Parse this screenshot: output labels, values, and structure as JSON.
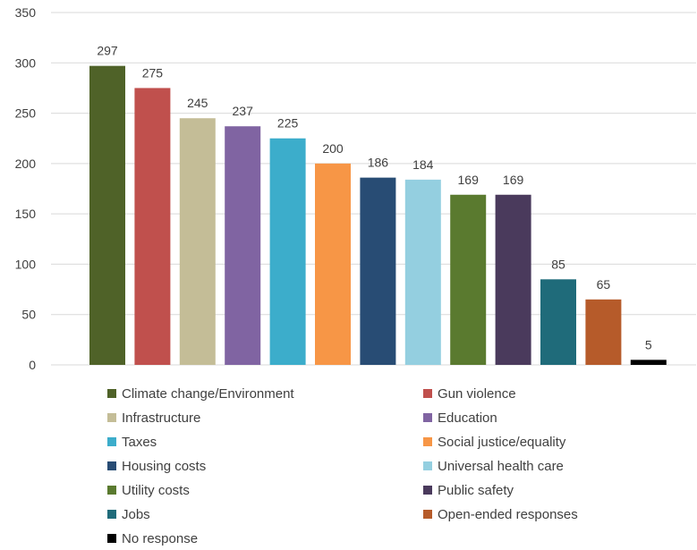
{
  "chart_data": {
    "type": "bar",
    "categories": [
      "Climate change/Environment",
      "Gun violence",
      "Infrastructure",
      "Education",
      "Taxes",
      "Social justice/equality",
      "Housing costs",
      "Universal health care",
      "Utility costs",
      "Public safety",
      "Jobs",
      "Open-ended responses",
      "No response"
    ],
    "values": [
      297,
      275,
      245,
      237,
      225,
      200,
      186,
      184,
      169,
      169,
      85,
      65,
      5
    ],
    "colors": [
      "#4f6228",
      "#c0504d",
      "#c4bd97",
      "#8064a2",
      "#3cadcb",
      "#f79646",
      "#284c74",
      "#94cfe0",
      "#5a7a2f",
      "#4a3a5c",
      "#1f6b7a",
      "#b65b2a",
      "#000000"
    ],
    "ylim": [
      0,
      350
    ],
    "yticks": [
      0,
      50,
      100,
      150,
      200,
      250,
      300,
      350
    ],
    "grid": true,
    "data_labels": true,
    "legend_position": "bottom",
    "title": "",
    "xlabel": "",
    "ylabel": ""
  }
}
